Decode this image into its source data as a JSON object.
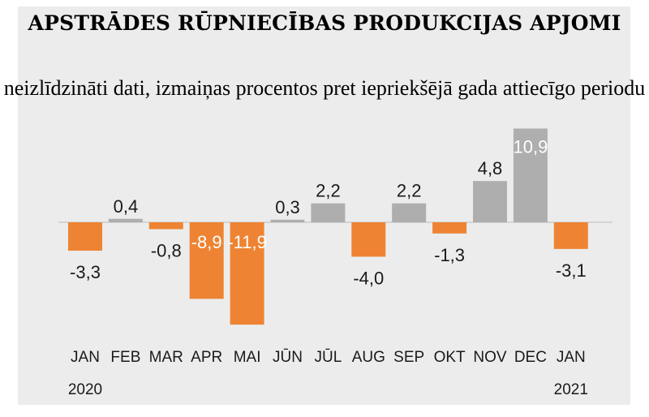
{
  "chart_data": {
    "type": "bar",
    "title": "APSTRĀDES RŪPNIECĪBAS PRODUKCIJAS APJOMI",
    "subtitle": "neizlīdzināti dati, izmaiņas procentos pret iepriekšējā gada attiecīgo periodu",
    "xlabel": "",
    "ylabel": "",
    "ylim": [
      -12,
      11
    ],
    "categories": [
      "JAN",
      "FEB",
      "MAR",
      "APR",
      "MAI",
      "JŪN",
      "JŪL",
      "AUG",
      "SEP",
      "OKT",
      "NOV",
      "DEC",
      "JAN"
    ],
    "year_labels": [
      {
        "category_index": 0,
        "label": "2020"
      },
      {
        "category_index": 12,
        "label": "2021"
      }
    ],
    "values": [
      -3.3,
      0.4,
      -0.8,
      -8.9,
      -11.9,
      0.3,
      2.2,
      -4.0,
      2.2,
      -1.3,
      4.8,
      10.9,
      -3.1
    ],
    "value_labels": [
      "-3,3",
      "0,4",
      "-0,8",
      "-8,9",
      "-11,9",
      "0,3",
      "2,2",
      "-4,0",
      "2,2",
      "-1,3",
      "4,8",
      "10,9",
      "-3,1"
    ],
    "colors": {
      "positive": "#aeaeae",
      "negative": "#ee8433",
      "baseline": "#bdbdbd"
    }
  }
}
